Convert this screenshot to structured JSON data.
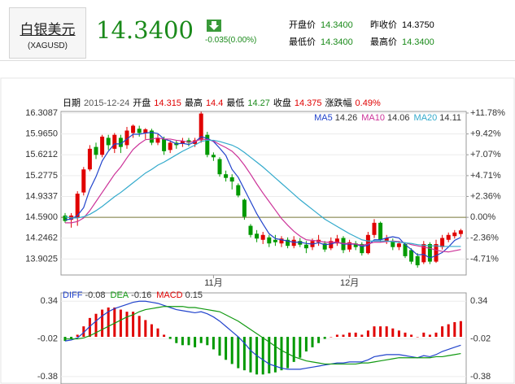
{
  "quote": {
    "name": "白银美元",
    "code": "(XAGUSD)",
    "price": "14.3400",
    "change": "-0.035(0.00%)",
    "fields": [
      {
        "label": "开盘价",
        "value": "14.3400",
        "color": "#1a8a1a"
      },
      {
        "label": "昨收价",
        "value": "14.3750",
        "color": "#000000"
      },
      {
        "label": "最低价",
        "value": "14.3400",
        "color": "#1a8a1a"
      },
      {
        "label": "最高价",
        "value": "14.3400",
        "color": "#1a8a1a"
      }
    ]
  },
  "chart_data": [
    {
      "type": "candlestick",
      "info": {
        "date_label": "日期",
        "date": "2015-12-24",
        "open_label": "开盘",
        "high_label": "最高",
        "low_label": "最低",
        "close_label": "收盘",
        "change_label": "涨跌幅",
        "change": "0.49%"
      },
      "categories": [
        null,
        null,
        null,
        null,
        null,
        null,
        null,
        null,
        null,
        null,
        null,
        null,
        null,
        null,
        null,
        null,
        null,
        null,
        null,
        null,
        null,
        null,
        null,
        null,
        "11月",
        null,
        null,
        null,
        null,
        null,
        null,
        null,
        null,
        null,
        null,
        null,
        null,
        null,
        null,
        null,
        null,
        null,
        null,
        null,
        null,
        null,
        "12月",
        null,
        null,
        null,
        null,
        null,
        null,
        null,
        null,
        null,
        null,
        null,
        null,
        null,
        null,
        null,
        null,
        null,
        null
      ],
      "open": [
        14.62,
        14.55,
        14.58,
        15.0,
        15.38,
        15.75,
        15.62,
        15.9,
        15.72,
        15.9,
        15.78,
        15.98,
        16.05,
        15.98,
        16.02,
        15.82,
        15.88,
        15.7,
        15.82,
        15.8,
        15.86,
        15.8,
        15.86,
        15.95,
        15.62,
        15.55,
        15.3,
        15.25,
        15.12,
        14.88,
        14.45,
        14.32,
        14.22,
        14.26,
        14.22,
        14.16,
        14.22,
        14.12,
        14.2,
        14.14,
        14.1,
        14.18,
        14.16,
        14.08,
        14.16,
        14.25,
        14.06,
        14.16,
        14.15,
        14.0,
        14.3,
        14.5,
        14.2,
        14.2,
        14.1,
        14.15,
        14.05,
        13.95,
        13.85,
        14.15,
        13.86,
        14.1,
        14.22,
        14.28,
        14.315
      ],
      "high": [
        14.66,
        14.66,
        15.02,
        15.42,
        15.78,
        15.82,
        15.95,
        15.95,
        15.98,
        15.95,
        16.08,
        16.12,
        16.1,
        16.06,
        16.05,
        15.96,
        15.92,
        15.86,
        15.86,
        15.9,
        15.9,
        15.9,
        16.33,
        16.0,
        15.66,
        15.58,
        15.36,
        15.3,
        15.15,
        14.9,
        14.48,
        14.38,
        14.35,
        14.3,
        14.3,
        14.28,
        14.26,
        14.28,
        14.25,
        14.2,
        14.24,
        14.3,
        14.2,
        14.26,
        14.3,
        14.28,
        14.22,
        14.2,
        14.18,
        14.35,
        14.56,
        14.52,
        14.3,
        14.24,
        14.2,
        14.18,
        14.08,
        14.0,
        14.2,
        14.18,
        14.22,
        14.3,
        14.34,
        14.38,
        14.4
      ],
      "low": [
        14.5,
        14.42,
        14.45,
        14.95,
        15.35,
        15.55,
        15.58,
        15.7,
        15.65,
        15.65,
        15.72,
        15.9,
        15.92,
        15.88,
        15.78,
        15.78,
        15.62,
        15.65,
        15.72,
        15.75,
        15.76,
        15.75,
        15.82,
        15.58,
        15.52,
        15.26,
        15.18,
        15.05,
        14.92,
        14.55,
        14.26,
        14.18,
        14.15,
        14.1,
        14.12,
        14.1,
        14.08,
        14.08,
        14.1,
        14.0,
        14.05,
        14.12,
        14.02,
        14.05,
        14.12,
        14.0,
        14.02,
        14.05,
        13.96,
        13.98,
        14.25,
        14.18,
        14.15,
        14.05,
        14.05,
        13.92,
        13.82,
        13.76,
        13.82,
        13.82,
        13.84,
        14.06,
        14.18,
        14.24,
        14.27
      ],
      "close": [
        14.53,
        14.62,
        14.98,
        15.38,
        15.72,
        15.62,
        15.92,
        15.78,
        15.95,
        15.75,
        16.02,
        16.1,
        15.98,
        16.04,
        15.82,
        15.9,
        15.68,
        15.82,
        15.78,
        15.85,
        15.82,
        15.86,
        16.3,
        15.62,
        15.58,
        15.3,
        15.24,
        15.18,
        14.95,
        14.6,
        14.3,
        14.24,
        14.3,
        14.16,
        14.18,
        14.24,
        14.12,
        14.22,
        14.14,
        14.08,
        14.2,
        14.22,
        14.06,
        14.2,
        14.24,
        14.05,
        14.18,
        14.1,
        14.0,
        14.3,
        14.5,
        14.22,
        14.25,
        14.1,
        14.16,
        13.95,
        13.86,
        13.8,
        14.15,
        13.86,
        14.15,
        14.25,
        14.3,
        14.34,
        14.375
      ],
      "up_color": "#e00000",
      "down_color": "#009900",
      "series": [
        {
          "name": "MA5",
          "color": "#2244cc",
          "values": [
            14.55,
            14.56,
            14.62,
            14.75,
            15.05,
            15.26,
            15.52,
            15.68,
            15.8,
            15.8,
            15.88,
            15.96,
            15.96,
            15.98,
            15.99,
            15.97,
            15.88,
            15.85,
            15.8,
            15.81,
            15.79,
            15.83,
            15.92,
            15.89,
            15.84,
            15.73,
            15.61,
            15.38,
            15.25,
            15.05,
            14.85,
            14.65,
            14.48,
            14.32,
            14.24,
            14.22,
            14.2,
            14.18,
            14.18,
            14.16,
            14.15,
            14.17,
            14.14,
            14.15,
            14.18,
            14.15,
            14.15,
            14.15,
            14.11,
            14.13,
            14.22,
            14.22,
            14.25,
            14.27,
            14.25,
            14.14,
            14.06,
            13.97,
            13.98,
            13.92,
            13.96,
            14.01,
            14.1,
            14.21,
            14.26
          ]
        },
        {
          "name": "MA10",
          "color": "#cc3399",
          "values": [
            14.5,
            14.5,
            14.52,
            14.58,
            14.7,
            14.85,
            15.0,
            15.15,
            15.3,
            15.42,
            15.57,
            15.71,
            15.8,
            15.87,
            15.88,
            15.9,
            15.88,
            15.88,
            15.86,
            15.85,
            15.83,
            15.84,
            15.88,
            15.87,
            15.85,
            15.79,
            15.74,
            15.68,
            15.58,
            15.45,
            15.3,
            15.14,
            14.99,
            14.85,
            14.71,
            14.57,
            14.46,
            14.36,
            14.28,
            14.22,
            14.21,
            14.2,
            14.18,
            14.18,
            14.18,
            14.16,
            14.16,
            14.15,
            14.13,
            14.15,
            14.18,
            14.18,
            14.19,
            14.2,
            14.19,
            14.17,
            14.14,
            14.12,
            14.1,
            14.08,
            14.05,
            14.03,
            14.02,
            14.04,
            14.06
          ]
        },
        {
          "name": "MA20",
          "color": "#33aacc",
          "values": [
            14.6,
            14.58,
            14.58,
            14.6,
            14.64,
            14.7,
            14.77,
            14.85,
            14.93,
            15.0,
            15.08,
            15.16,
            15.24,
            15.32,
            15.38,
            15.45,
            15.5,
            15.56,
            15.62,
            15.68,
            15.73,
            15.78,
            15.84,
            15.86,
            15.86,
            15.84,
            15.81,
            15.78,
            15.73,
            15.66,
            15.58,
            15.5,
            15.42,
            15.33,
            15.24,
            15.15,
            15.06,
            14.97,
            14.88,
            14.8,
            14.72,
            14.64,
            14.56,
            14.5,
            14.44,
            14.38,
            14.32,
            14.27,
            14.22,
            14.2,
            14.2,
            14.2,
            14.2,
            14.19,
            14.18,
            14.17,
            14.16,
            14.14,
            14.13,
            14.12,
            14.12,
            14.11,
            14.11,
            14.11,
            14.11
          ]
        }
      ],
      "ylim": [
        13.64,
        16.335
      ],
      "yticks": [
        16.3087,
        {
          "value": 15.965,
          "label": "15.9650"
        },
        15.6212,
        15.2775,
        14.9337,
        {
          "value": 14.59,
          "label": "14.5900"
        },
        14.2462,
        13.9025
      ],
      "y2lim": [
        -6.511,
        11.96
      ],
      "y2ticks": [
        {
          "value": 11.78,
          "label": "+11.78%"
        },
        {
          "value": 9.42,
          "label": "+9.42%"
        },
        {
          "value": 7.07,
          "label": "+7.07%"
        },
        {
          "value": 4.71,
          "label": "+4.71%"
        },
        {
          "value": 2.36,
          "label": "+2.36%"
        },
        {
          "value": 0,
          "label": "0.00%"
        },
        {
          "value": -2.36,
          "label": "-2.36%"
        },
        {
          "value": -4.71,
          "label": "-4.71%"
        }
      ],
      "grid": true
    },
    {
      "type": "macd",
      "series": [
        {
          "name": "DIFF",
          "color": "#2244cc",
          "values": [
            -0.04,
            -0.03,
            -0.01,
            0.04,
            0.1,
            0.15,
            0.2,
            0.24,
            0.27,
            0.29,
            0.31,
            0.33,
            0.34,
            0.34,
            0.33,
            0.32,
            0.3,
            0.28,
            0.26,
            0.25,
            0.24,
            0.23,
            0.24,
            0.22,
            0.19,
            0.15,
            0.1,
            0.05,
            0.0,
            -0.06,
            -0.13,
            -0.18,
            -0.22,
            -0.26,
            -0.28,
            -0.3,
            -0.31,
            -0.31,
            -0.31,
            -0.3,
            -0.29,
            -0.28,
            -0.27,
            -0.26,
            -0.25,
            -0.25,
            -0.24,
            -0.24,
            -0.24,
            -0.22,
            -0.19,
            -0.18,
            -0.17,
            -0.17,
            -0.17,
            -0.18,
            -0.19,
            -0.2,
            -0.18,
            -0.19,
            -0.17,
            -0.14,
            -0.12,
            -0.1,
            -0.08
          ]
        },
        {
          "name": "DEA",
          "color": "#119911",
          "values": [
            -0.02,
            -0.02,
            -0.02,
            -0.01,
            0.01,
            0.04,
            0.07,
            0.1,
            0.13,
            0.16,
            0.19,
            0.21,
            0.24,
            0.26,
            0.27,
            0.28,
            0.29,
            0.29,
            0.29,
            0.29,
            0.28,
            0.28,
            0.27,
            0.26,
            0.25,
            0.24,
            0.21,
            0.18,
            0.15,
            0.11,
            0.07,
            0.03,
            -0.01,
            -0.05,
            -0.09,
            -0.13,
            -0.16,
            -0.19,
            -0.21,
            -0.23,
            -0.24,
            -0.25,
            -0.26,
            -0.26,
            -0.26,
            -0.26,
            -0.26,
            -0.26,
            -0.25,
            -0.25,
            -0.24,
            -0.23,
            -0.22,
            -0.21,
            -0.2,
            -0.2,
            -0.2,
            -0.2,
            -0.2,
            -0.2,
            -0.19,
            -0.19,
            -0.18,
            -0.17,
            -0.16
          ]
        },
        {
          "name": "MACD",
          "color": "#e00000",
          "down_color": "#009900",
          "bars": true,
          "values": [
            -0.04,
            -0.02,
            0.02,
            0.1,
            0.18,
            0.22,
            0.26,
            0.28,
            0.28,
            0.26,
            0.24,
            0.24,
            0.2,
            0.16,
            0.12,
            0.08,
            0.02,
            -0.02,
            -0.06,
            -0.08,
            -0.08,
            -0.1,
            -0.06,
            -0.08,
            -0.12,
            -0.18,
            -0.22,
            -0.26,
            -0.3,
            -0.32,
            -0.34,
            -0.36,
            -0.36,
            -0.35,
            -0.34,
            -0.32,
            -0.3,
            -0.24,
            -0.2,
            -0.14,
            -0.1,
            -0.06,
            -0.02,
            0.0,
            0.02,
            0.02,
            0.04,
            0.04,
            0.02,
            0.06,
            0.1,
            0.1,
            0.1,
            0.08,
            0.06,
            0.04,
            0.02,
            0.0,
            0.04,
            0.02,
            0.04,
            0.1,
            0.12,
            0.14,
            0.15
          ]
        }
      ],
      "ylim": [
        -0.42,
        0.42
      ],
      "yticks": [
        0.34,
        -0.02,
        -0.38
      ]
    }
  ]
}
